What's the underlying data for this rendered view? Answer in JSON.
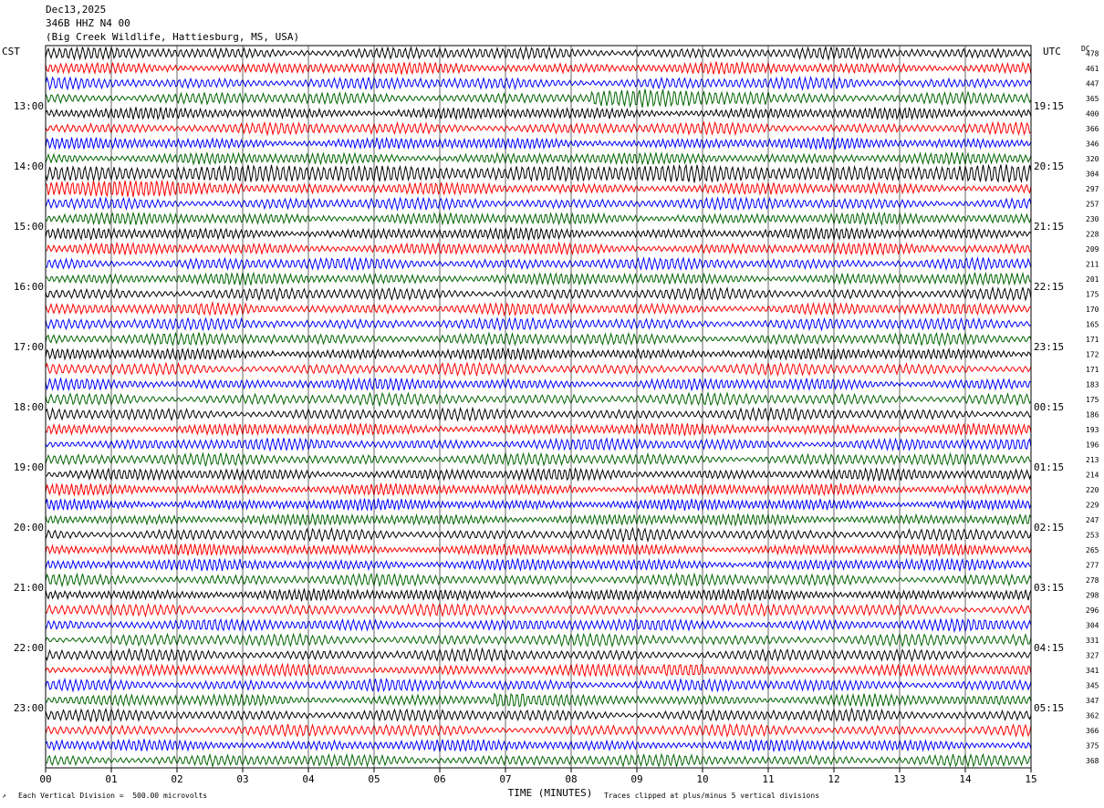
{
  "header": {
    "date": "Dec13,2025",
    "station": "346B HHZ N4 00",
    "location": "(Big Creek Wildlife, Hattiesburg, MS, USA)"
  },
  "left_tz": "CST",
  "right_tz": "UTC",
  "dc_label": "DC",
  "footer": {
    "scale_note": "Each Vertical Division =  500.00 microvolts",
    "clip_note": "Traces clipped at plus/minus 5 vertical divisions"
  },
  "chart_data": {
    "type": "line",
    "title": "",
    "xlabel": "TIME (MINUTES)",
    "xlim": [
      0,
      15
    ],
    "x_ticks": [
      "00",
      "01",
      "02",
      "03",
      "04",
      "05",
      "06",
      "07",
      "08",
      "09",
      "10",
      "11",
      "12",
      "13",
      "14",
      "15"
    ],
    "left_hour_labels": [
      "13:00",
      "14:00",
      "15:00",
      "16:00",
      "17:00",
      "18:00",
      "19:00",
      "20:00",
      "21:00",
      "22:00",
      "23:00"
    ],
    "right_hour_labels": [
      "19:15",
      "20:15",
      "21:15",
      "22:15",
      "23:15",
      "00:15",
      "01:15",
      "02:15",
      "03:15",
      "04:15",
      "05:15"
    ],
    "dc_offsets": [
      "478",
      "461",
      "447",
      "365",
      "400",
      "366",
      "346",
      "320",
      "304",
      "297",
      "257",
      "230",
      "228",
      "209",
      "211",
      "201",
      "175",
      "170",
      "165",
      "171",
      "172",
      "171",
      "183",
      "175",
      "186",
      "193",
      "196",
      "213",
      "214",
      "220",
      "229",
      "247",
      "253",
      "265",
      "277",
      "278",
      "298",
      "296",
      "304",
      "331",
      "327",
      "341",
      "345",
      "347",
      "362",
      "366",
      "375",
      "368"
    ],
    "trace_colors": [
      "#000000",
      "#ff0000",
      "#0000ff",
      "#006400"
    ],
    "grid": true,
    "notable_events": [
      {
        "row": 3,
        "start_min": 8.3,
        "end_min": 11.0,
        "note": "elevated noise"
      },
      {
        "row": 8,
        "start_min": 0.0,
        "end_min": 15.0,
        "note": "high-amplitude noise"
      },
      {
        "row": 9,
        "start_min": 0.0,
        "end_min": 3.0,
        "note": "high-amplitude noise"
      },
      {
        "row": 41,
        "start_min": 9.4,
        "end_min": 10.0,
        "note": "burst"
      },
      {
        "row": 43,
        "start_min": 6.8,
        "end_min": 7.3,
        "note": "burst"
      }
    ]
  }
}
